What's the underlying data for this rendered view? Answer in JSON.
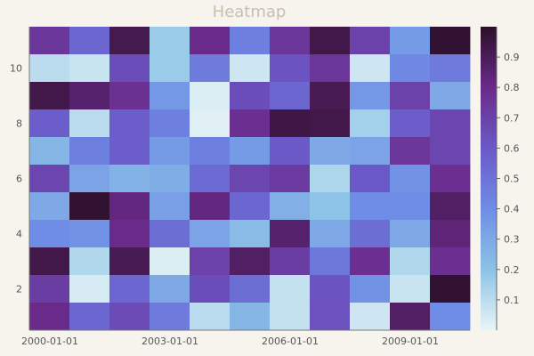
{
  "chart_data": {
    "type": "heatmap",
    "title": "Heatmap",
    "xlabel": "",
    "ylabel": "",
    "x_tick_labels": [
      "2000-01-01",
      "2003-01-01",
      "2006-01-01",
      "2009-01-01"
    ],
    "x_tick_columns": [
      0,
      3,
      6,
      9
    ],
    "y_tick_labels": [
      "2",
      "4",
      "6",
      "8",
      "10"
    ],
    "y_tick_values": [
      2,
      4,
      6,
      8,
      10
    ],
    "rows": 11,
    "cols": 11,
    "value_range": [
      0,
      1
    ],
    "colorbar_ticks": [
      "0.1",
      "0.2",
      "0.3",
      "0.4",
      "0.5",
      "0.6",
      "0.7",
      "0.8",
      "0.9"
    ],
    "colorbar_tick_values": [
      0.1,
      0.2,
      0.3,
      0.4,
      0.5,
      0.6,
      0.7,
      0.8,
      0.9
    ],
    "colormap": [
      "#e9f5f7",
      "#8cc3e6",
      "#6f8de6",
      "#6b59c8",
      "#6a2a8a",
      "#2c0f28"
    ],
    "values_top_to_bottom": [
      [
        0.75,
        0.55,
        0.92,
        0.17,
        0.8,
        0.45,
        0.75,
        0.93,
        0.7,
        0.35,
        0.98
      ],
      [
        0.1,
        0.07,
        0.65,
        0.17,
        0.47,
        0.06,
        0.62,
        0.75,
        0.06,
        0.42,
        0.47
      ],
      [
        0.93,
        0.86,
        0.77,
        0.36,
        0.03,
        0.65,
        0.55,
        0.91,
        0.36,
        0.7,
        0.3
      ],
      [
        0.58,
        0.1,
        0.58,
        0.45,
        0.02,
        0.78,
        0.94,
        0.93,
        0.15,
        0.58,
        0.68
      ],
      [
        0.25,
        0.45,
        0.58,
        0.35,
        0.45,
        0.35,
        0.6,
        0.3,
        0.32,
        0.75,
        0.68
      ],
      [
        0.68,
        0.32,
        0.26,
        0.28,
        0.53,
        0.68,
        0.73,
        0.13,
        0.6,
        0.38,
        0.78
      ],
      [
        0.3,
        0.98,
        0.82,
        0.33,
        0.82,
        0.55,
        0.27,
        0.2,
        0.4,
        0.4,
        0.88
      ],
      [
        0.4,
        0.38,
        0.8,
        0.52,
        0.32,
        0.23,
        0.86,
        0.3,
        0.52,
        0.3,
        0.84
      ],
      [
        0.93,
        0.12,
        0.91,
        0.03,
        0.7,
        0.88,
        0.72,
        0.48,
        0.78,
        0.12,
        0.78
      ],
      [
        0.72,
        0.04,
        0.55,
        0.3,
        0.65,
        0.52,
        0.08,
        0.62,
        0.38,
        0.07,
        0.98
      ],
      [
        0.8,
        0.55,
        0.66,
        0.47,
        0.1,
        0.25,
        0.08,
        0.63,
        0.06,
        0.88,
        0.4
      ]
    ]
  }
}
